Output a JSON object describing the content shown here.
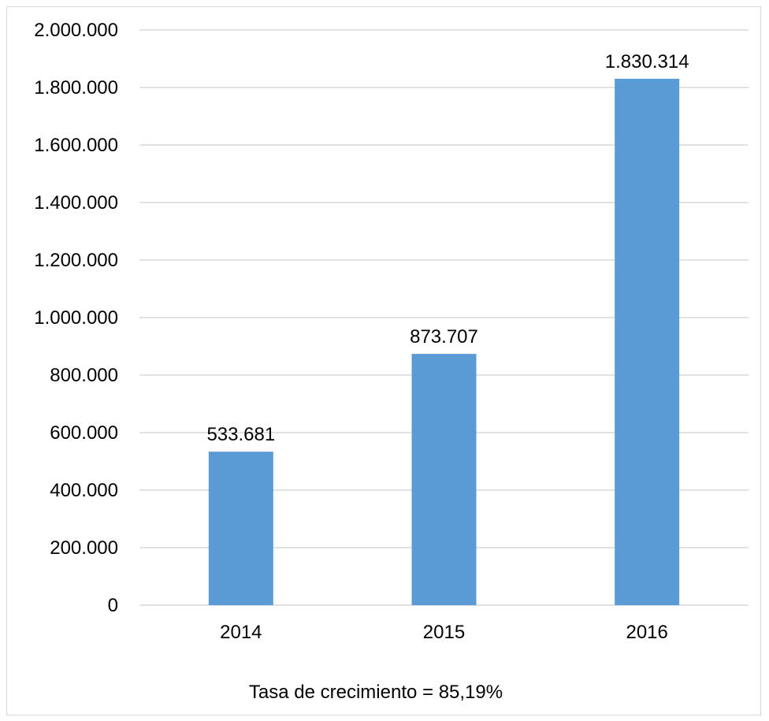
{
  "chart_data": {
    "type": "bar",
    "categories": [
      "2014",
      "2015",
      "2016"
    ],
    "values": [
      533681,
      873707,
      1830314
    ],
    "value_labels": [
      "533.681",
      "873.707",
      "1.830.314"
    ],
    "ylim": [
      0,
      2000000
    ],
    "yticks": [
      0,
      200000,
      400000,
      600000,
      800000,
      1000000,
      1200000,
      1400000,
      1600000,
      1800000,
      2000000
    ],
    "ytick_labels": [
      "0",
      "200.000",
      "400.000",
      "600.000",
      "800.000",
      "1.000.000",
      "1.200.000",
      "1.400.000",
      "1.600.000",
      "1.800.000",
      "2.000.000"
    ],
    "grid": true,
    "bar_color": "#5b9bd5",
    "gridline_color": "#d9d9d9",
    "note": "Tasa de crecimiento = 85,19%"
  }
}
